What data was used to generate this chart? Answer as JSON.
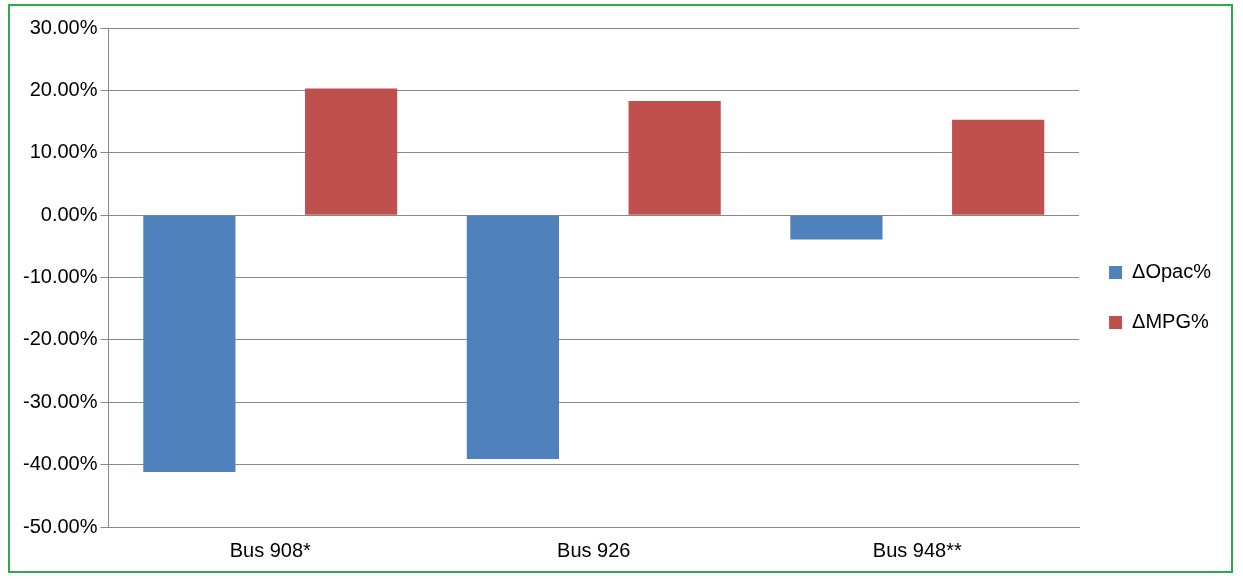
{
  "chart_data": {
    "type": "bar",
    "categories": [
      "Bus 908*",
      "Bus 926",
      "Bus 948**"
    ],
    "series": [
      {
        "name": "ΔOpac%",
        "color": "#4f81bd",
        "values": [
          -41.2,
          -39.1,
          -3.9
        ]
      },
      {
        "name": "ΔMPG%",
        "color": "#c0504d",
        "values": [
          20.3,
          18.3,
          15.3
        ]
      }
    ],
    "ylim": [
      -50,
      30
    ],
    "yticks": [
      {
        "value": -50,
        "label": "-50.00%"
      },
      {
        "value": -40,
        "label": "-40.00%"
      },
      {
        "value": -30,
        "label": "-30.00%"
      },
      {
        "value": -20,
        "label": "-20.00%"
      },
      {
        "value": -10,
        "label": "-10.00%"
      },
      {
        "value": 0,
        "label": "0.00%"
      },
      {
        "value": 10,
        "label": "10.00%"
      },
      {
        "value": 20,
        "label": "20.00%"
      },
      {
        "value": 30,
        "label": "30.00%"
      }
    ],
    "grid": "y",
    "legend": "right"
  }
}
